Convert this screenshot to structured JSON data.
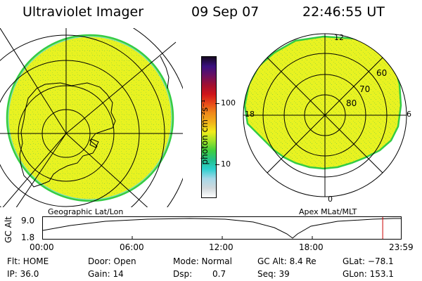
{
  "header": {
    "title": "Ultraviolet Imager",
    "date": "09 Sep 07",
    "time": "22:46:55 UT"
  },
  "colors": {
    "fill": "#e8f221",
    "rim": "#33cc44",
    "rim2": "#66dddd",
    "speckle": "#9bd83a"
  },
  "colorbar": {
    "unit_label": "photon cm⁻²s⁻¹",
    "tick_100": "100",
    "tick_10": "10",
    "stops": [
      "#ffffff",
      "#cfd8dc",
      "#a7d8e8",
      "#2ed0d0",
      "#23c08a",
      "#3fcf3f",
      "#9ee22a",
      "#f2ec1a",
      "#f2b21a",
      "#f08a1a",
      "#e84b1a",
      "#d0151a",
      "#a01030",
      "#6a1060",
      "#3a1080",
      "#160820"
    ]
  },
  "left_map": {
    "caption": "Geographic Lat/Lon"
  },
  "right_map": {
    "caption": "Apex MLat/MLT",
    "label_12": "12",
    "label_18": "18",
    "label_6": "6",
    "label_0": "0",
    "lat_60": "60",
    "lat_70": "70",
    "lat_80": "80"
  },
  "altitude_plot": {
    "ylabel": "GC Alt",
    "y_top": "9.0",
    "y_bottom": "1.8",
    "x_ticks": [
      "00:00",
      "06:00",
      "12:00",
      "18:00",
      "23:59"
    ],
    "current_marker_hour": 22.78,
    "marker_color": "#cc0000"
  },
  "status": {
    "flt": "Flt: HOME",
    "ip": "IP: 36.0",
    "door": "Door: Open",
    "gain": "Gain: 14",
    "mode": "Mode: Normal",
    "dsp_label": "Dsp:",
    "dsp_value": "0.7",
    "gc_alt": "GC Alt: 8.4 Re",
    "seq": "Seq: 39",
    "glat": "GLat: −78.1",
    "glon": "GLon: 153.1"
  }
}
